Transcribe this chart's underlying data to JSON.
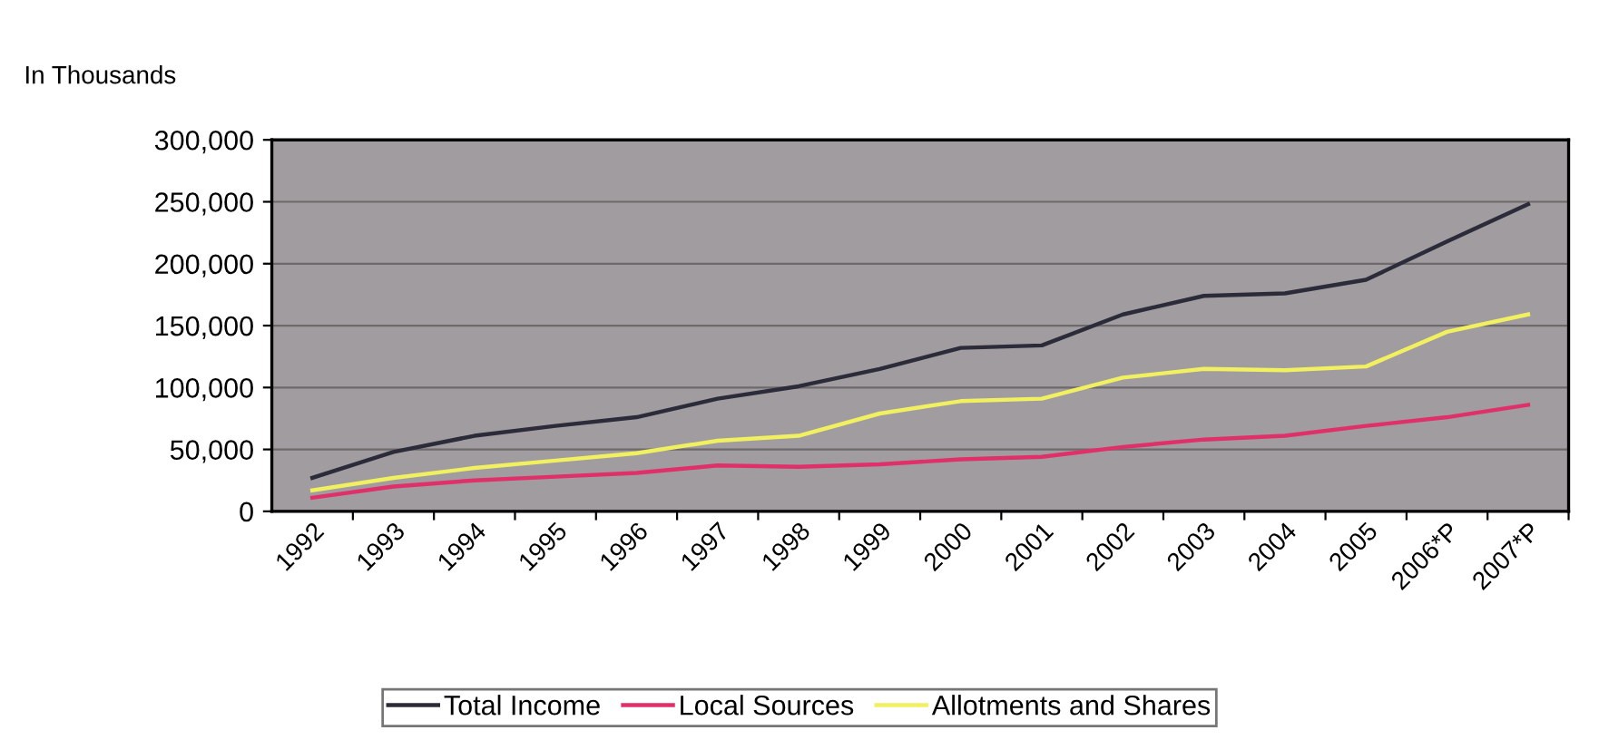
{
  "chart_data": {
    "type": "line",
    "ylabel": "In Thousands",
    "categories": [
      "1992",
      "1993",
      "1994",
      "1995",
      "1996",
      "1997",
      "1998",
      "1999",
      "2000",
      "2001",
      "2002",
      "2003",
      "2004",
      "2005",
      "2006*P",
      "2007*P"
    ],
    "series": [
      {
        "name": "Total Income",
        "color": "#2b2b3a",
        "values": [
          27000,
          48000,
          61000,
          69000,
          76000,
          91000,
          101000,
          115000,
          132000,
          134000,
          159000,
          174000,
          176000,
          187000,
          218000,
          248000
        ]
      },
      {
        "name": "Local Sources",
        "color": "#e0306a",
        "values": [
          11000,
          20000,
          25000,
          28000,
          31000,
          37000,
          36000,
          38000,
          42000,
          44000,
          52000,
          58000,
          61000,
          69000,
          76000,
          86000
        ]
      },
      {
        "name": "Allotments and Shares",
        "color": "#f0f060",
        "values": [
          17000,
          27000,
          35000,
          41000,
          47000,
          57000,
          61000,
          79000,
          89000,
          91000,
          108000,
          115000,
          114000,
          117000,
          145000,
          159000
        ]
      }
    ],
    "ylim": [
      0,
      300000
    ],
    "yticks": [
      {
        "value": 0,
        "label": "0"
      },
      {
        "value": 50000,
        "label": "50,000"
      },
      {
        "value": 100000,
        "label": "100,000"
      },
      {
        "value": 150000,
        "label": "150,000"
      },
      {
        "value": 200000,
        "label": "200,000"
      },
      {
        "value": 250000,
        "label": "250,000"
      },
      {
        "value": 300000,
        "label": "300,000"
      }
    ],
    "grid": "y",
    "legend": "bottom",
    "marker": "none",
    "line_style": "solid"
  }
}
